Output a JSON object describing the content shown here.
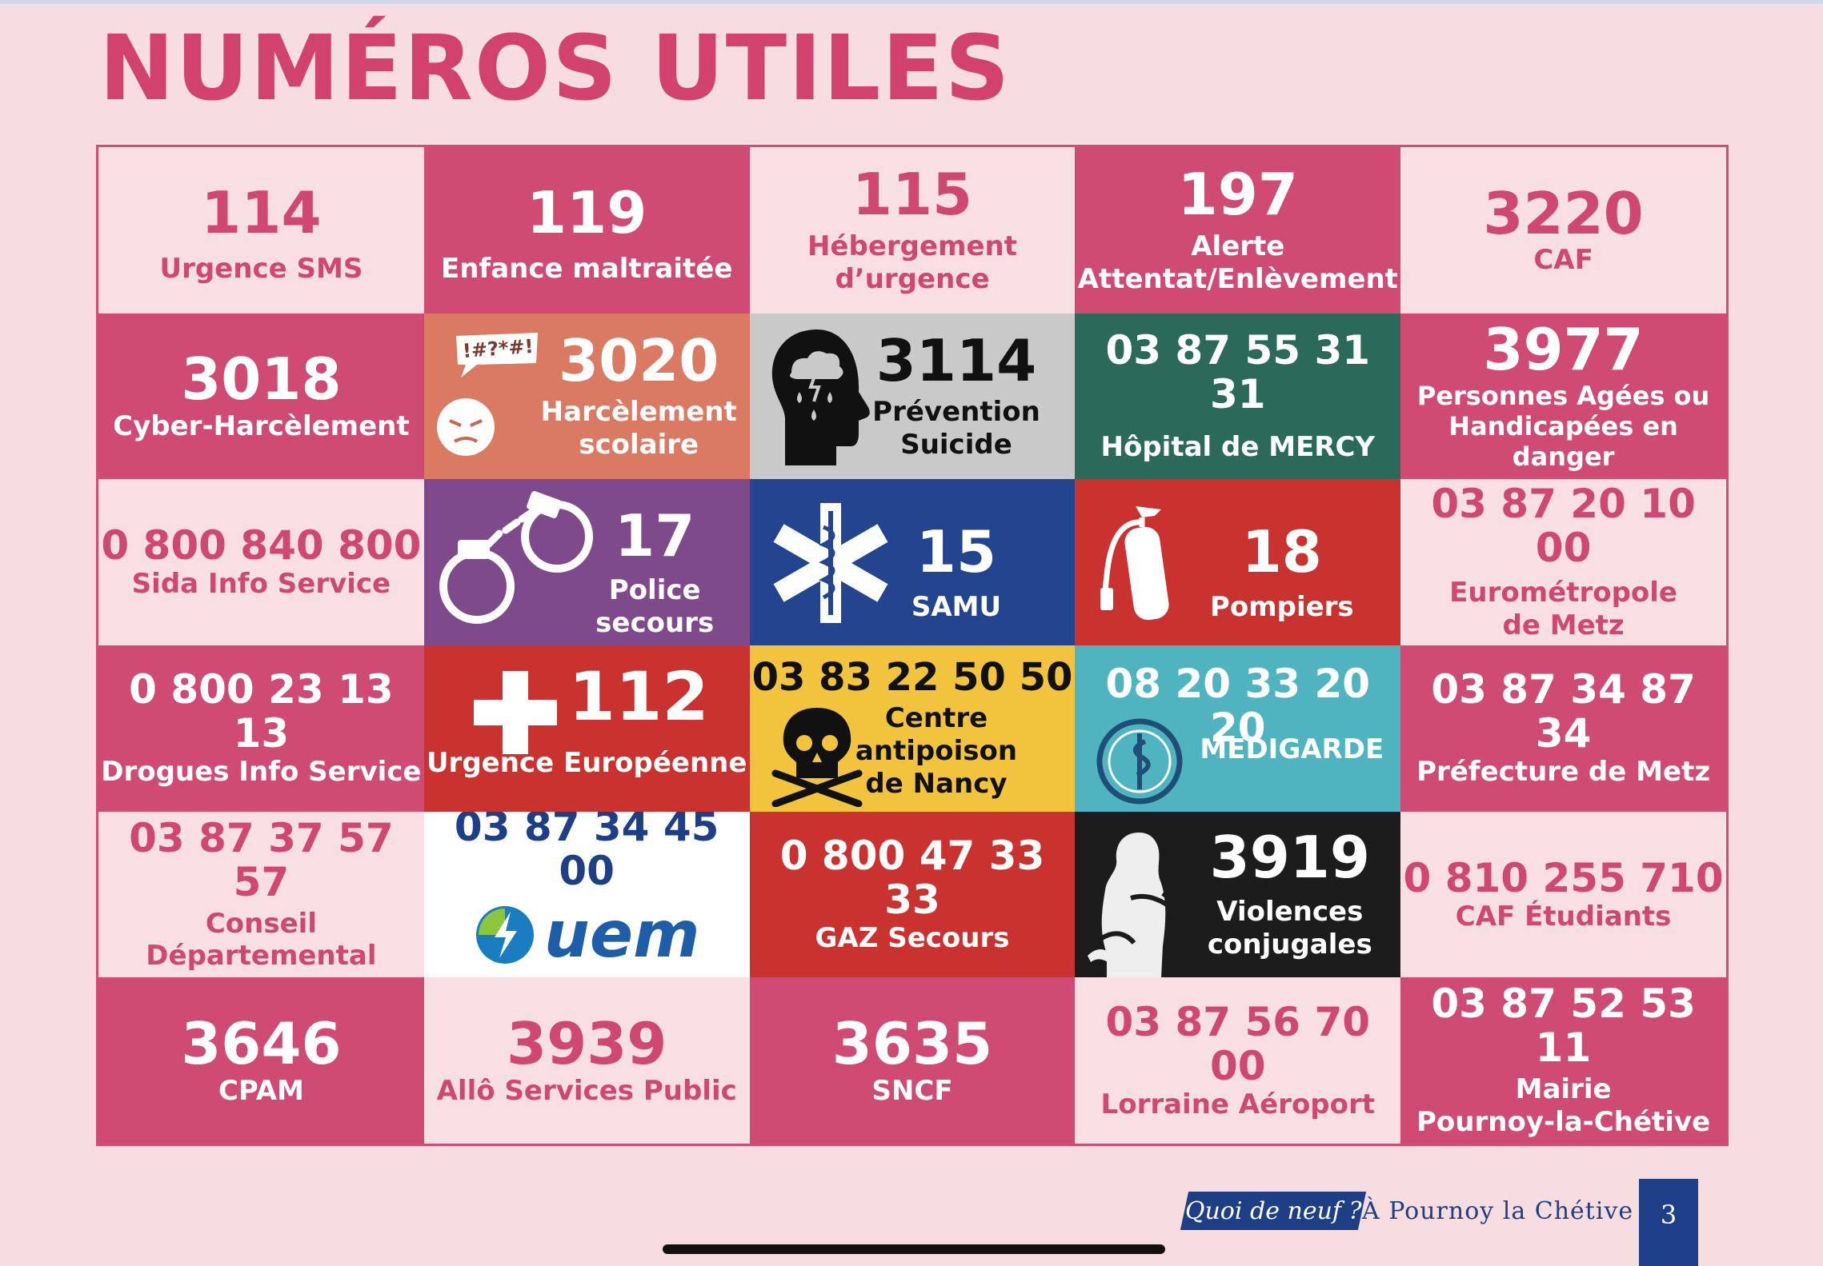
{
  "title": "NUMÉROS UTILES",
  "cells": [
    {
      "num": "114",
      "label": "Urgence SMS"
    },
    {
      "num": "119",
      "label": "Enfance maltraitée"
    },
    {
      "num": "115",
      "label1": "Hébergement",
      "label2": "d’urgence"
    },
    {
      "num": "197",
      "label1": "Alerte",
      "label2": "Attentat/Enlèvement"
    },
    {
      "num": "3220",
      "label": "CAF"
    },
    {
      "num": "3018",
      "label": "Cyber-Harcèlement"
    },
    {
      "num": "3020",
      "label1": "Harcèlement",
      "label2": "scolaire",
      "bubble": "!#?*#!"
    },
    {
      "num": "3114",
      "label1": "Prévention",
      "label2": "Suicide"
    },
    {
      "num": "03 87 55 31 31",
      "label": "Hôpital de MERCY"
    },
    {
      "num": "3977",
      "label1": "Personnes Agées ou",
      "label2": "Handicapées en danger"
    },
    {
      "num": "0 800 840 800",
      "label": "Sida Info Service"
    },
    {
      "num": "17",
      "label": "Police secours"
    },
    {
      "num": "15",
      "label": "SAMU"
    },
    {
      "num": "18",
      "label": "Pompiers"
    },
    {
      "num": "03 87 20 10 00",
      "label1": "Eurométropole",
      "label2": "de Metz"
    },
    {
      "num": "0 800 23 13 13",
      "label": "Drogues Info Service"
    },
    {
      "num": "112",
      "label": "Urgence Européenne"
    },
    {
      "num": "03 83 22 50 50",
      "label1": "Centre",
      "label2": "antipoison",
      "label3": "de Nancy"
    },
    {
      "num": "08 20 33 20 20",
      "label": "MEDIGARDE"
    },
    {
      "num": "03 87 34 87 34",
      "label": "Préfecture de Metz"
    },
    {
      "num": "03 87 37 57 57",
      "label1": "Conseil",
      "label2": "Départemental"
    },
    {
      "num": "03 87 34 45 00",
      "logo": "uem"
    },
    {
      "num": "0 800 47 33 33",
      "label": "GAZ Secours"
    },
    {
      "num": "3919",
      "label1": "Violences",
      "label2": "conjugales"
    },
    {
      "num": "0 810 255 710",
      "label": "CAF Étudiants"
    },
    {
      "num": "3646",
      "label": "CPAM"
    },
    {
      "num": "3939",
      "label": "Allô Services Public"
    },
    {
      "num": "3635",
      "label": "SNCF"
    },
    {
      "num": "03 87 56 70 00",
      "label": "Lorraine Aéroport"
    },
    {
      "num": "03 87 52 53 11",
      "label1": "Mairie",
      "label2": "Pournoy-la-Chétive"
    }
  ],
  "footer": {
    "logo": "Quoi de neuf ?",
    "text": "À Pournoy la Chétive",
    "page": "3"
  },
  "colors": {
    "brand_pink": "#d04b73",
    "light_pink": "#f8dfe3",
    "orange": "#db7a63",
    "grey": "#c9c9c9",
    "green": "#2b6a59",
    "purple": "#7e4a8c",
    "blue": "#234590",
    "red": "#c9322f",
    "yellow": "#f2c33d",
    "teal": "#4fb4bf",
    "black": "#1c1c1c",
    "navy": "#1f3f88"
  }
}
